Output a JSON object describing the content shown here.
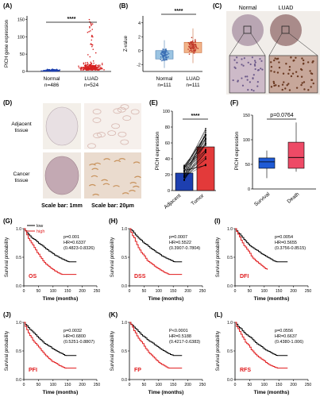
{
  "panels": {
    "A": {
      "letter": "(A)",
      "ylabel": "PICH gene expression",
      "ticks": [
        "0",
        "50",
        "100",
        "150"
      ],
      "groups": [
        "Normal",
        "LUAD"
      ],
      "ns": [
        "n=486",
        "n=524"
      ],
      "sig": "****"
    },
    "B": {
      "letter": "(B)",
      "ylabel": "Z-value",
      "ticks": [
        "-2",
        "0",
        "2",
        "4"
      ],
      "groups": [
        "Normal",
        "LUAD"
      ],
      "ns": [
        "n=111",
        "n=111"
      ],
      "sig": "****"
    },
    "C": {
      "letter": "(C)",
      "labels": [
        "Normal",
        "LUAD"
      ]
    },
    "D": {
      "letter": "(D)",
      "rows": [
        "Adjacent",
        "tissue",
        "Cancer",
        "tissue"
      ],
      "scales": [
        "Scale bar: 1mm",
        "Scale bar: 20μm"
      ]
    },
    "E": {
      "letter": "(E)",
      "ylabel": "PICH expression",
      "ticks": [
        "0",
        "20",
        "40",
        "60",
        "80",
        "100"
      ],
      "groups": [
        "Adjacent",
        "Tumor"
      ],
      "sig": "****"
    },
    "F": {
      "letter": "(F)",
      "ylabel": "PICH expression",
      "ticks": [
        "0",
        "50",
        "100",
        "150"
      ],
      "groups": [
        "Survival",
        "Death"
      ],
      "pval": "p=0.0764"
    }
  },
  "km": [
    {
      "letter": "(G)",
      "label": "OS",
      "stats": [
        "p=0.001",
        "HR=0.6337",
        "(0.4823-0.8326)"
      ],
      "legend": [
        "low",
        "high"
      ]
    },
    {
      "letter": "(H)",
      "label": "DSS",
      "stats": [
        "p=0.0007",
        "HR=0.5522",
        "(0.3907-0.7804)"
      ]
    },
    {
      "letter": "(I)",
      "label": "DFI",
      "stats": [
        "p=0.0054",
        "HR=0.5655",
        "(0.3756-0.8515)"
      ]
    },
    {
      "letter": "(J)",
      "label": "PFI",
      "stats": [
        "p=0.0032",
        "HR=0.6800",
        "(0.5251-0.8807)"
      ]
    },
    {
      "letter": "(K)",
      "label": "FP",
      "stats": [
        "P<0.0001",
        "HR=0.5188",
        "(0.4217-0.6383)"
      ]
    },
    {
      "letter": "(L)",
      "label": "RFS",
      "stats": [
        "p=0.0556",
        "HR=0.6637",
        "(0.4380-1.006)"
      ]
    }
  ],
  "km_axes": {
    "ylabel": "Survival probability",
    "xlabel": "Time (months)",
    "yticks": [
      "0.0",
      "0.5",
      "1.0"
    ],
    "xticks": [
      "0",
      "50",
      "100",
      "150",
      "200",
      "250"
    ]
  },
  "colors": {
    "low": "#000000",
    "high": "#e0191b",
    "normal": "#1c3fae",
    "luad": "#d62020",
    "boxB_normal": "#9bc4e2",
    "boxB_luad": "#f2b48a",
    "bar_adj": "#1d3fb0",
    "bar_tum": "#e33a3a",
    "boxF": "#1f5bd6",
    "boxF2": "#ee4a66"
  },
  "chart_data": [
    {
      "type": "scatter",
      "panel": "A",
      "categories": [
        "Normal",
        "LUAD"
      ],
      "ylim": [
        0,
        160
      ],
      "ylabel": "PICH gene expression"
    },
    {
      "type": "scatter",
      "panel": "B",
      "categories": [
        "Normal",
        "LUAD"
      ],
      "ylim": [
        -3,
        5
      ],
      "ylabel": "Z-value"
    },
    {
      "type": "bar",
      "panel": "E",
      "categories": [
        "Adjacent",
        "Tumor"
      ],
      "values": [
        22,
        55
      ],
      "ylim": [
        0,
        100
      ],
      "ylabel": "PICH expression"
    },
    {
      "type": "box",
      "panel": "F",
      "categories": [
        "Survival",
        "Death"
      ],
      "ylim": [
        0,
        150
      ],
      "ylabel": "PICH expression"
    },
    {
      "type": "line",
      "panel": "G",
      "xlabel": "Time (months)",
      "ylabel": "Survival probability",
      "series": [
        {
          "name": "low"
        },
        {
          "name": "high"
        }
      ]
    }
  ]
}
